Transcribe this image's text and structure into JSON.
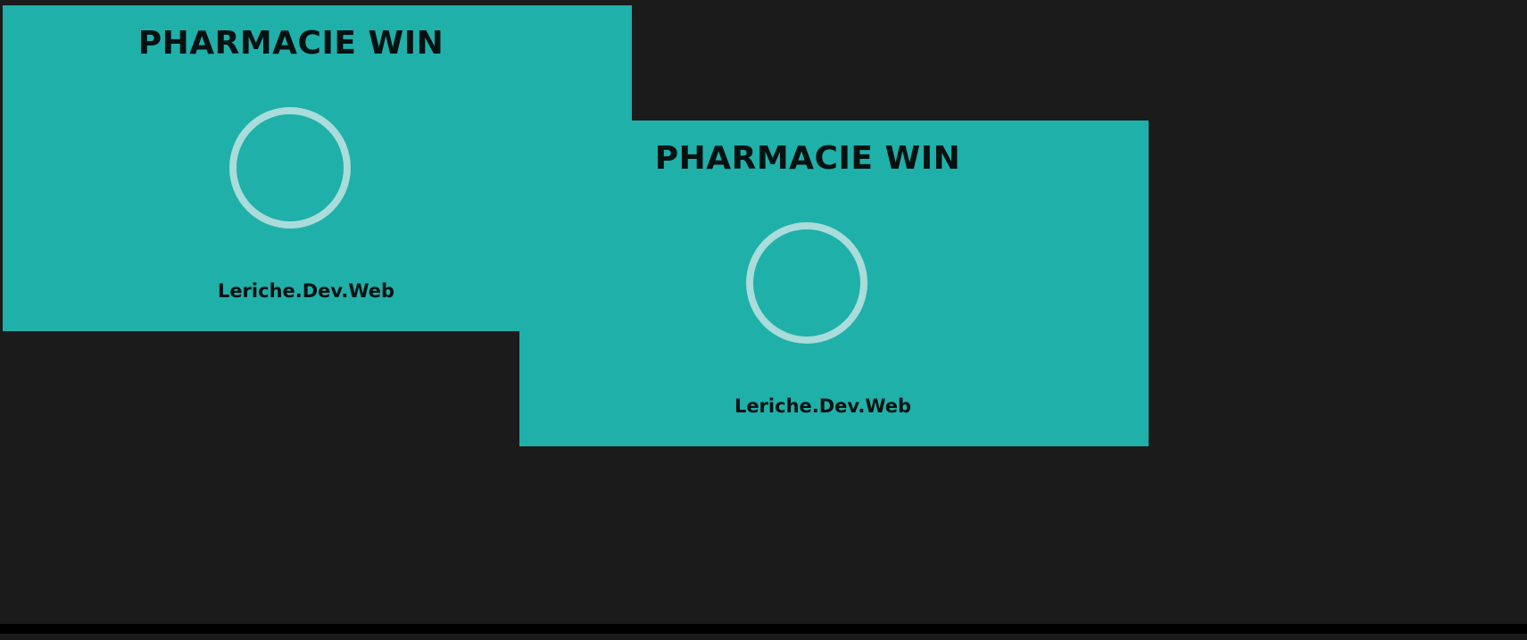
{
  "windows": [
    {
      "title": "PHARMACIE WIN",
      "footer": "Leriche.Dev.Web",
      "spinner_icon": "loading-ring"
    },
    {
      "title": "PHARMACIE WIN",
      "footer": "Leriche.Dev.Web",
      "spinner_icon": "loading-ring"
    }
  ],
  "colors": {
    "background": "#1b1b1b",
    "splash": "#20b0aa",
    "spinner": "#a9dcda",
    "text": "#061212"
  }
}
